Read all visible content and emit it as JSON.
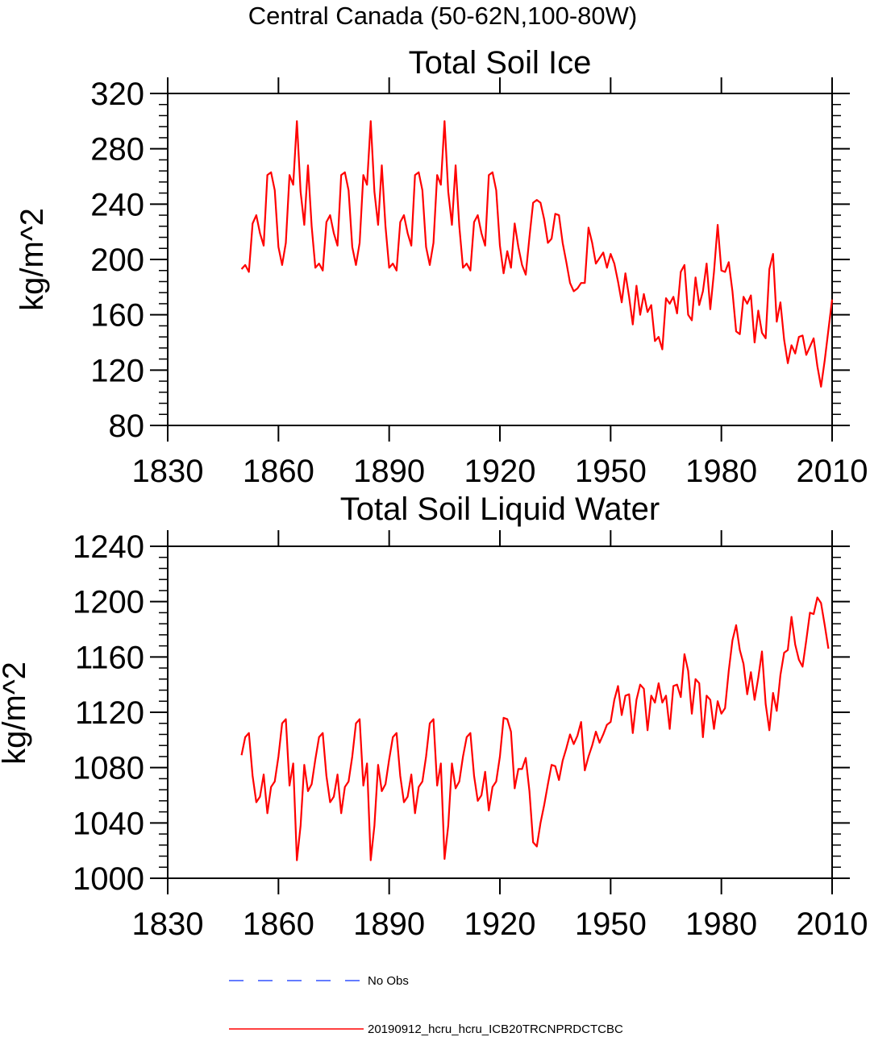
{
  "suptitle": "Central Canada (50-62N,100-80W)",
  "colors": {
    "model_line": "#ff0000",
    "obs_line": "#3050ff",
    "axes": "#000000"
  },
  "legend": [
    {
      "label": "No Obs",
      "style": "dashed",
      "color": "#3050ff"
    },
    {
      "label": "20190912_hcru_hcru_ICB20TRCNPRDCTCBC",
      "style": "solid",
      "color": "#ff0000"
    }
  ],
  "chart_data": [
    {
      "type": "line",
      "title": "Total Soil Ice",
      "xlabel": "",
      "ylabel": "kg/m^2",
      "xlim": [
        1830,
        2010
      ],
      "ylim": [
        80,
        320
      ],
      "xticks": [
        1830,
        1860,
        1890,
        1920,
        1950,
        1980,
        2010
      ],
      "yticks": [
        80,
        120,
        160,
        200,
        240,
        280,
        320
      ],
      "series": [
        {
          "name": "20190912_hcru_hcru_ICB20TRCNPRDCTCBC",
          "x_start": 1850,
          "values": [
            193,
            196,
            191,
            226,
            232,
            219,
            210,
            261,
            263,
            250,
            209,
            196,
            212,
            261,
            254,
            300,
            249,
            225,
            268,
            224,
            194,
            197,
            192,
            227,
            232,
            219,
            210,
            261,
            263,
            250,
            209,
            196,
            212,
            261,
            254,
            300,
            249,
            225,
            268,
            224,
            194,
            197,
            192,
            227,
            232,
            219,
            210,
            261,
            263,
            250,
            209,
            196,
            212,
            261,
            254,
            300,
            249,
            225,
            268,
            224,
            194,
            197,
            192,
            227,
            232,
            219,
            210,
            261,
            263,
            250,
            210,
            190,
            206,
            194,
            226,
            209,
            196,
            189,
            216,
            241,
            243,
            241,
            229,
            212,
            215,
            233,
            232,
            212,
            198,
            183,
            177,
            179,
            183,
            183,
            223,
            212,
            197,
            201,
            205,
            194,
            204,
            197,
            184,
            169,
            190,
            173,
            153,
            181,
            160,
            175,
            162,
            167,
            141,
            144,
            135,
            172,
            168,
            173,
            161,
            191,
            196,
            160,
            156,
            187,
            167,
            177,
            197,
            164,
            191,
            225,
            192,
            191,
            198,
            177,
            148,
            146,
            173,
            168,
            174,
            140,
            163,
            147,
            143,
            193,
            204,
            155,
            169,
            142,
            125,
            138,
            132,
            144,
            145,
            131,
            137,
            143,
            123,
            108,
            127,
            149,
            171
          ]
        }
      ]
    },
    {
      "type": "line",
      "title": "Total Soil Liquid Water",
      "xlabel": "",
      "ylabel": "kg/m^2",
      "xlim": [
        1830,
        2010
      ],
      "ylim": [
        1000,
        1240
      ],
      "xticks": [
        1830,
        1860,
        1890,
        1920,
        1950,
        1980,
        2010
      ],
      "yticks": [
        1000,
        1040,
        1080,
        1120,
        1160,
        1200,
        1240
      ],
      "series": [
        {
          "name": "20190912_hcru_hcru_ICB20TRCNPRDCTCBC",
          "x_start": 1850,
          "values": [
            1089,
            1102,
            1105,
            1074,
            1055,
            1059,
            1075,
            1047,
            1066,
            1070,
            1088,
            1112,
            1115,
            1067,
            1083,
            1013,
            1038,
            1082,
            1063,
            1068,
            1086,
            1102,
            1105,
            1074,
            1055,
            1059,
            1075,
            1047,
            1066,
            1070,
            1088,
            1112,
            1115,
            1067,
            1083,
            1013,
            1038,
            1082,
            1063,
            1068,
            1086,
            1102,
            1105,
            1074,
            1055,
            1059,
            1075,
            1047,
            1066,
            1070,
            1088,
            1112,
            1115,
            1067,
            1083,
            1014,
            1038,
            1083,
            1065,
            1070,
            1088,
            1102,
            1105,
            1074,
            1056,
            1060,
            1077,
            1049,
            1066,
            1070,
            1088,
            1116,
            1115,
            1106,
            1065,
            1079,
            1079,
            1087,
            1063,
            1026,
            1023,
            1040,
            1053,
            1068,
            1082,
            1081,
            1071,
            1085,
            1094,
            1104,
            1097,
            1103,
            1113,
            1078,
            1088,
            1096,
            1106,
            1098,
            1104,
            1111,
            1113,
            1129,
            1139,
            1118,
            1132,
            1133,
            1105,
            1129,
            1140,
            1137,
            1107,
            1132,
            1127,
            1141,
            1127,
            1132,
            1108,
            1139,
            1140,
            1131,
            1162,
            1150,
            1119,
            1144,
            1141,
            1102,
            1132,
            1129,
            1108,
            1128,
            1119,
            1123,
            1150,
            1172,
            1183,
            1165,
            1155,
            1133,
            1149,
            1129,
            1145,
            1164,
            1126,
            1107,
            1134,
            1121,
            1147,
            1163,
            1165,
            1189,
            1169,
            1158,
            1153,
            1172,
            1192,
            1191,
            1203,
            1199,
            1183,
            1166
          ]
        }
      ]
    }
  ]
}
